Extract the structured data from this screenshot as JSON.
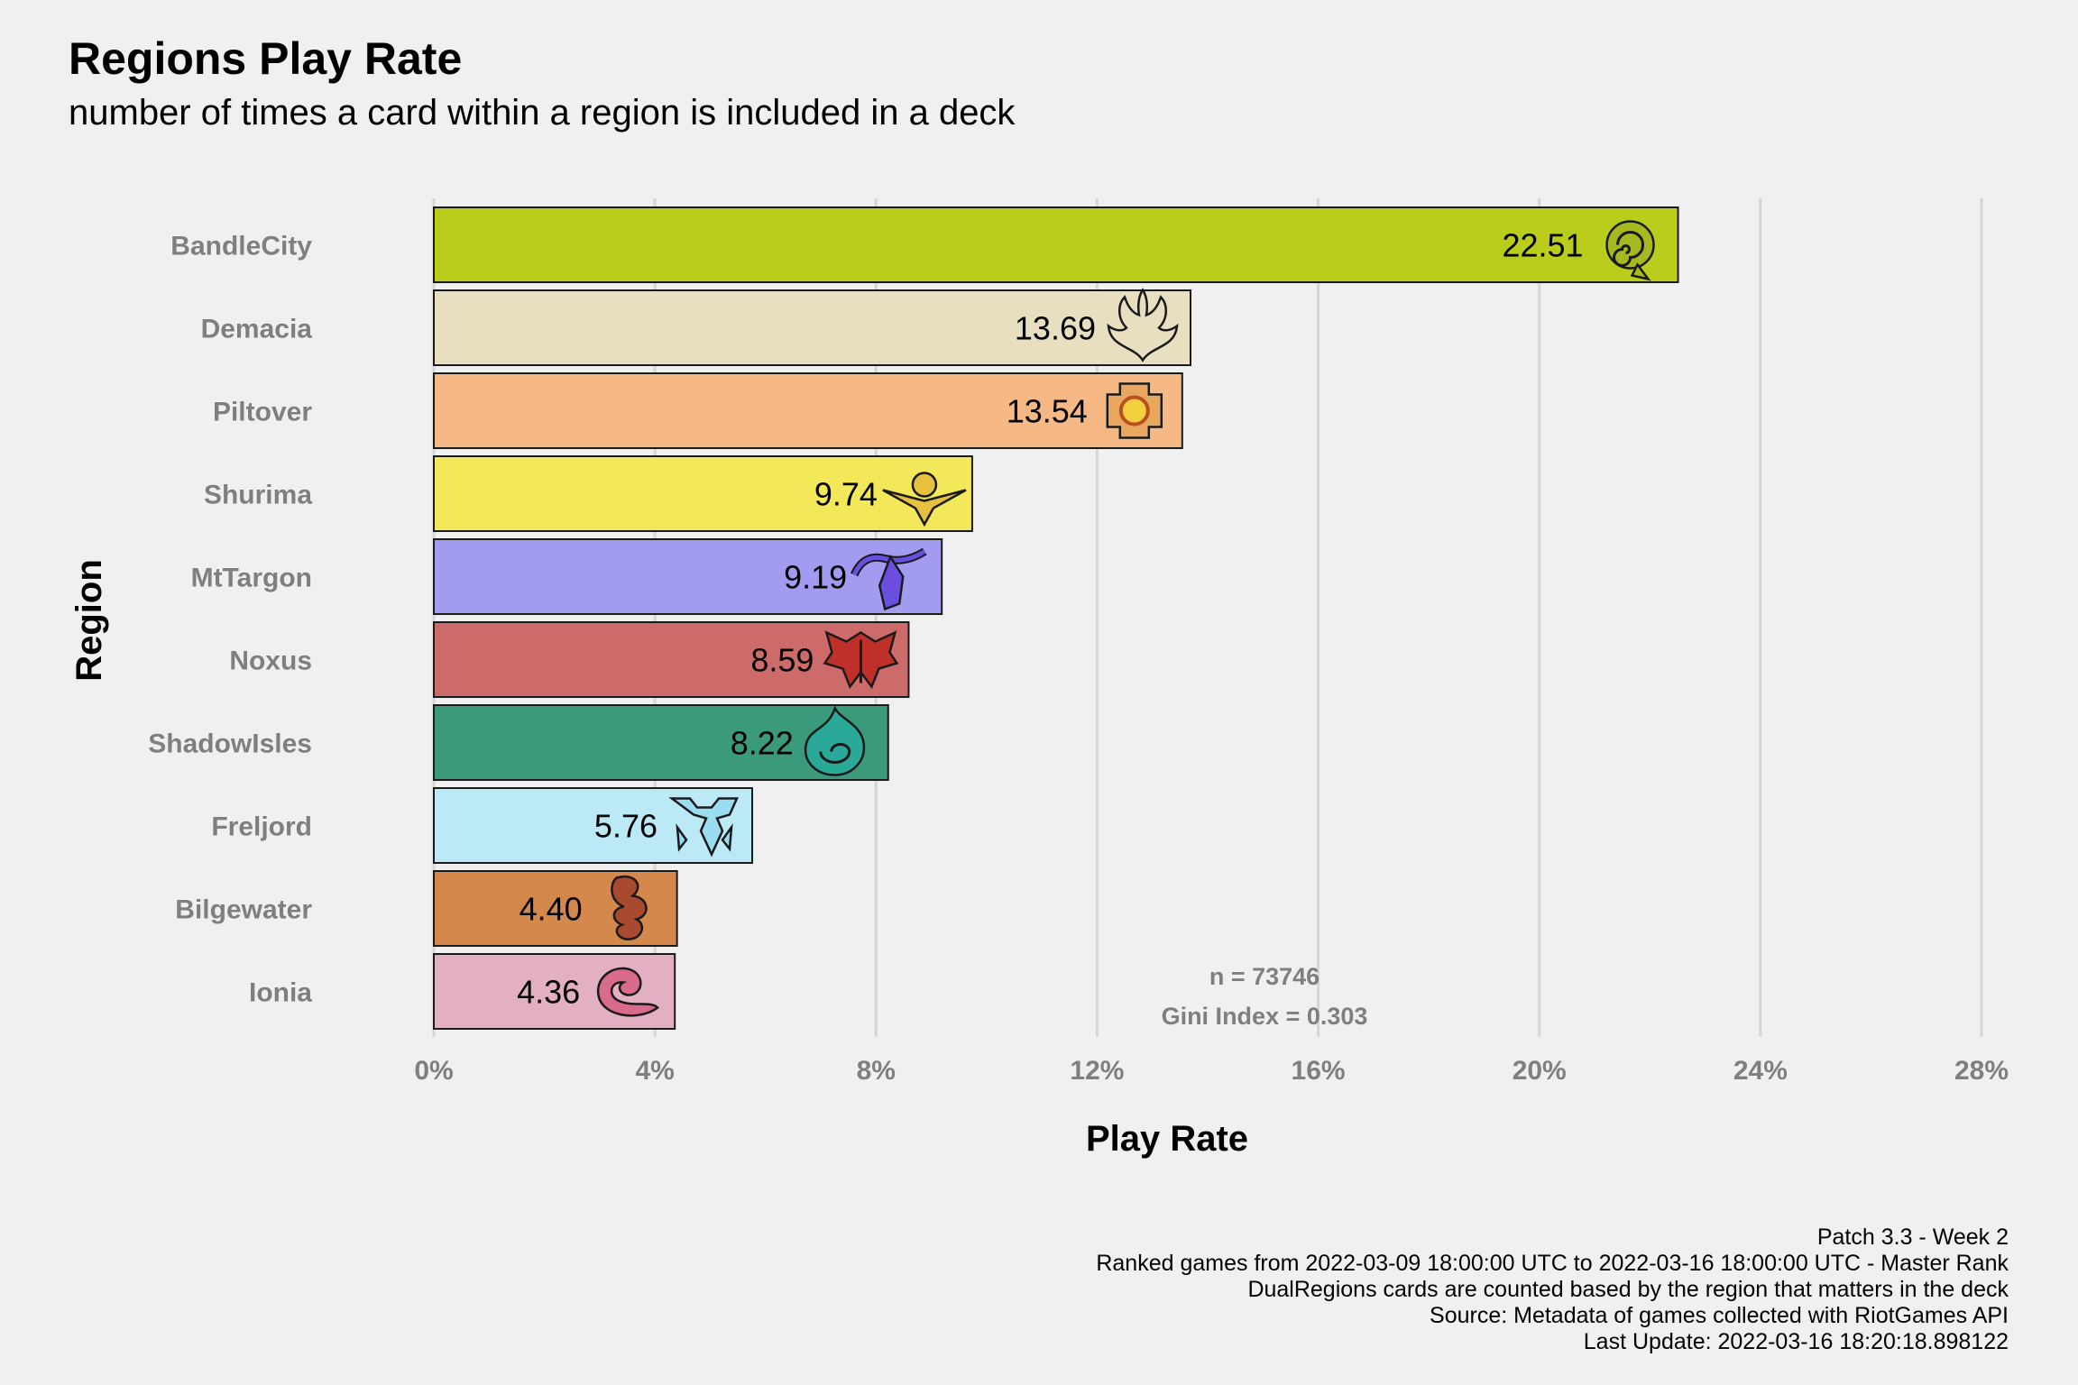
{
  "title": "Regions Play Rate",
  "subtitle": "number of times a card within a region is included in a deck",
  "annotation": {
    "n": "n = 73746",
    "gini": "Gini Index = 0.303"
  },
  "caption": [
    "Patch 3.3 - Week 2",
    "Ranked games from 2022-03-09 18:00:00 UTC to 2022-03-16 18:00:00 UTC - Master Rank",
    "DualRegions cards are counted based by the region that matters in the deck",
    "Source: Metadata of games collected with RiotGames API",
    "Last Update: 2022-03-16 18:20:18.898122"
  ],
  "chart_data": {
    "type": "bar",
    "orientation": "horizontal",
    "xlabel": "Play Rate",
    "ylabel": "Region",
    "xlim": [
      0,
      28
    ],
    "xticks": [
      0,
      4,
      8,
      12,
      16,
      20,
      24,
      28
    ],
    "xtick_labels": [
      "0%",
      "4%",
      "8%",
      "12%",
      "16%",
      "20%",
      "24%",
      "28%"
    ],
    "grid": "vertical major lines",
    "categories": [
      "BandleCity",
      "Demacia",
      "Piltover",
      "Shurima",
      "MtTargon",
      "Noxus",
      "ShadowIsles",
      "Freljord",
      "Bilgewater",
      "Ionia"
    ],
    "values": [
      22.51,
      13.69,
      13.54,
      9.74,
      9.19,
      8.59,
      8.22,
      5.76,
      4.4,
      4.36
    ],
    "value_labels": [
      "22.51",
      "13.69",
      "13.54",
      "9.74",
      "9.19",
      "8.59",
      "8.22",
      "5.76",
      "4.40",
      "4.36"
    ],
    "colors": [
      "#bacd1c",
      "#e8dfc0",
      "#f6b985",
      "#f2e85a",
      "#a19cf0",
      "#cd6b6b",
      "#3b9a7c",
      "#bbeaf6",
      "#d4884b",
      "#e3b0c3"
    ],
    "icons": [
      "bandlecity-icon",
      "demacia-icon",
      "piltover-icon",
      "shurima-icon",
      "mttargon-icon",
      "noxus-icon",
      "shadowisles-icon",
      "freljord-icon",
      "bilgewater-icon",
      "ionia-icon"
    ],
    "icon_colors": [
      "#a8b820",
      "#e8dfc0",
      "#e8a860",
      "#e8c040",
      "#6a4ee0",
      "#c0302a",
      "#2aa898",
      "#9adcf0",
      "#a84a30",
      "#d86a8a"
    ]
  }
}
